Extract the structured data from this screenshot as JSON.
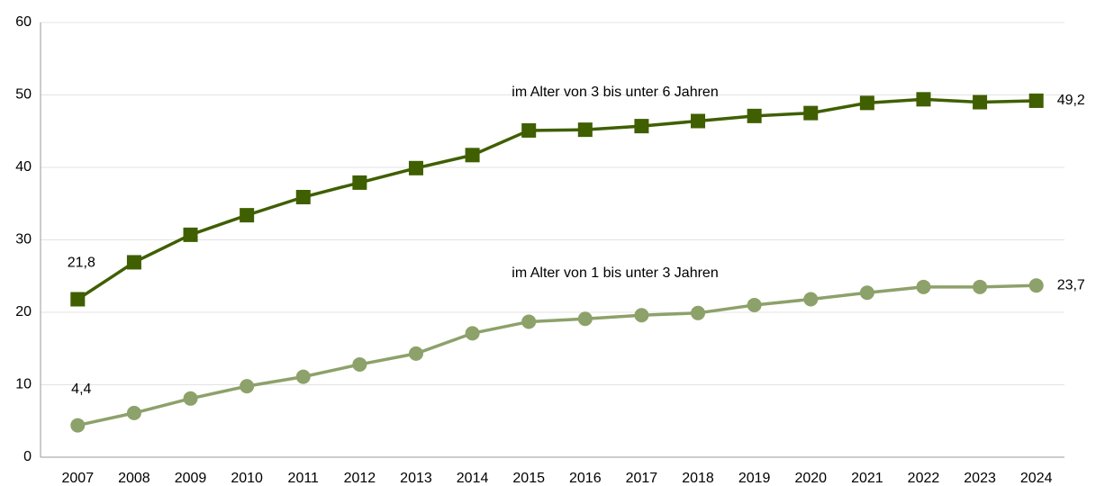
{
  "chart_data": {
    "type": "line",
    "categories": [
      "2007",
      "2008",
      "2009",
      "2010",
      "2011",
      "2012",
      "2013",
      "2014",
      "2015",
      "2016",
      "2017",
      "2018",
      "2019",
      "2020",
      "2021",
      "2022",
      "2023",
      "2024"
    ],
    "series": [
      {
        "name": "im Alter von 3 bis unter 6 Jahren",
        "color": "#3f5f00",
        "marker": "square",
        "values": [
          21.8,
          26.9,
          30.7,
          33.4,
          35.9,
          37.9,
          39.9,
          41.7,
          45.1,
          45.2,
          45.7,
          46.4,
          47.1,
          47.5,
          48.9,
          49.4,
          49.0,
          49.2
        ],
        "value_labels": [
          "21,8",
          null,
          null,
          null,
          null,
          null,
          null,
          null,
          null,
          null,
          null,
          null,
          null,
          null,
          null,
          null,
          null,
          "49,2"
        ]
      },
      {
        "name": "im Alter von 1 bis unter 3 Jahren",
        "color": "#8da16a",
        "marker": "circle",
        "values": [
          4.4,
          6.1,
          8.1,
          9.8,
          11.1,
          12.8,
          14.3,
          17.1,
          18.7,
          19.1,
          19.6,
          19.9,
          21.0,
          21.8,
          22.7,
          23.5,
          23.5,
          23.7
        ],
        "value_labels": [
          "4,4",
          null,
          null,
          null,
          null,
          null,
          null,
          null,
          null,
          null,
          null,
          null,
          null,
          null,
          null,
          null,
          null,
          "23,7"
        ]
      }
    ],
    "ylim": [
      0,
      60
    ],
    "yticks": [
      0,
      10,
      20,
      30,
      40,
      50,
      60
    ],
    "grid": true
  }
}
